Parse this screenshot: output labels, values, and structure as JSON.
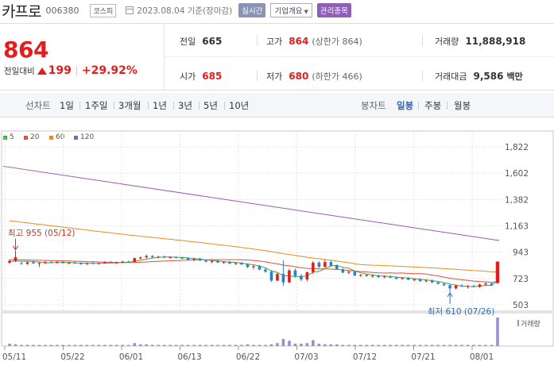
{
  "header": {
    "name": "카프로",
    "code": "006380",
    "market": "코스피",
    "date": "2023.08.04 기준(장마감)",
    "realtime": "실시간",
    "company_info": "기업개요",
    "managed": "관리종목"
  },
  "price": {
    "current": "864",
    "change_label": "전일대비",
    "change": "199",
    "change_pct": "+29.92%"
  },
  "stats": {
    "prev_label": "전일",
    "prev": "665",
    "high_label": "고가",
    "high": "864",
    "upper_limit": "(상한가 864)",
    "volume_label": "거래량",
    "volume": "11,888,918",
    "open_label": "시가",
    "open": "685",
    "low_label": "저가",
    "low": "680",
    "lower_limit": "(하한가 466)",
    "amount_label": "거래대금",
    "amount": "9,586",
    "amount_unit": "백만"
  },
  "periods": {
    "line_label": "선차트",
    "line_items": [
      "1일",
      "1주일",
      "3개월",
      "1년",
      "3년",
      "5년",
      "10년"
    ],
    "candle_label": "봉차트",
    "candle_items": [
      "일봉",
      "주봉",
      "월봉"
    ],
    "candle_selected": "일봉"
  },
  "chart_data": {
    "type": "candlestick",
    "legend": [
      {
        "name": "5",
        "color": "#3da83d"
      },
      {
        "name": "20",
        "color": "#e74c3c"
      },
      {
        "name": "60",
        "color": "#ef8a1a"
      },
      {
        "name": "120",
        "color": "#9b59b6"
      }
    ],
    "y_ticks": [
      "1,822",
      "1,602",
      "1,382",
      "1,163",
      "943",
      "723",
      "503"
    ],
    "ylim": [
      503,
      1822
    ],
    "x_ticks": [
      "05/11",
      "05/22",
      "06/01",
      "06/13",
      "06/22",
      "07/03",
      "07/12",
      "07/21",
      "08/01"
    ],
    "high_annotation": "최고 955 (05/12)",
    "low_annotation": "최저 610 (07/26)",
    "volume_label": "거래량",
    "candles": [
      {
        "o": 855,
        "h": 880,
        "l": 845,
        "c": 870
      },
      {
        "o": 870,
        "h": 955,
        "l": 860,
        "c": 900
      },
      {
        "o": 850,
        "h": 865,
        "l": 840,
        "c": 845
      },
      {
        "o": 845,
        "h": 862,
        "l": 838,
        "c": 858
      },
      {
        "o": 858,
        "h": 870,
        "l": 846,
        "c": 848
      },
      {
        "o": 848,
        "h": 858,
        "l": 818,
        "c": 852
      },
      {
        "o": 852,
        "h": 868,
        "l": 844,
        "c": 860
      },
      {
        "o": 860,
        "h": 872,
        "l": 852,
        "c": 855
      },
      {
        "o": 855,
        "h": 866,
        "l": 846,
        "c": 862
      },
      {
        "o": 862,
        "h": 870,
        "l": 850,
        "c": 850
      },
      {
        "o": 850,
        "h": 860,
        "l": 842,
        "c": 854
      },
      {
        "o": 854,
        "h": 866,
        "l": 846,
        "c": 848
      },
      {
        "o": 848,
        "h": 858,
        "l": 840,
        "c": 844
      },
      {
        "o": 844,
        "h": 856,
        "l": 836,
        "c": 852
      },
      {
        "o": 852,
        "h": 864,
        "l": 842,
        "c": 846
      },
      {
        "o": 846,
        "h": 856,
        "l": 840,
        "c": 852
      },
      {
        "o": 852,
        "h": 866,
        "l": 846,
        "c": 858
      },
      {
        "o": 858,
        "h": 868,
        "l": 848,
        "c": 852
      },
      {
        "o": 852,
        "h": 862,
        "l": 844,
        "c": 858
      },
      {
        "o": 858,
        "h": 870,
        "l": 850,
        "c": 864
      },
      {
        "o": 864,
        "h": 872,
        "l": 856,
        "c": 860
      },
      {
        "o": 862,
        "h": 898,
        "l": 858,
        "c": 892
      },
      {
        "o": 890,
        "h": 906,
        "l": 882,
        "c": 898
      },
      {
        "o": 900,
        "h": 922,
        "l": 890,
        "c": 910
      },
      {
        "o": 910,
        "h": 918,
        "l": 896,
        "c": 900
      },
      {
        "o": 898,
        "h": 912,
        "l": 890,
        "c": 905
      },
      {
        "o": 905,
        "h": 914,
        "l": 892,
        "c": 898
      },
      {
        "o": 898,
        "h": 908,
        "l": 888,
        "c": 902
      },
      {
        "o": 902,
        "h": 910,
        "l": 890,
        "c": 895
      },
      {
        "o": 895,
        "h": 904,
        "l": 884,
        "c": 892
      },
      {
        "o": 892,
        "h": 902,
        "l": 874,
        "c": 880
      },
      {
        "o": 880,
        "h": 892,
        "l": 868,
        "c": 885
      },
      {
        "o": 885,
        "h": 896,
        "l": 870,
        "c": 872
      },
      {
        "o": 872,
        "h": 880,
        "l": 858,
        "c": 862
      },
      {
        "o": 862,
        "h": 874,
        "l": 850,
        "c": 868
      },
      {
        "o": 868,
        "h": 878,
        "l": 852,
        "c": 856
      },
      {
        "o": 856,
        "h": 866,
        "l": 846,
        "c": 860
      },
      {
        "o": 860,
        "h": 870,
        "l": 842,
        "c": 848
      },
      {
        "o": 848,
        "h": 858,
        "l": 836,
        "c": 852
      },
      {
        "o": 852,
        "h": 860,
        "l": 836,
        "c": 840
      },
      {
        "o": 840,
        "h": 850,
        "l": 810,
        "c": 818
      },
      {
        "o": 818,
        "h": 832,
        "l": 800,
        "c": 826
      },
      {
        "o": 826,
        "h": 836,
        "l": 792,
        "c": 798
      },
      {
        "o": 798,
        "h": 812,
        "l": 770,
        "c": 780
      },
      {
        "o": 780,
        "h": 790,
        "l": 695,
        "c": 705
      },
      {
        "o": 705,
        "h": 770,
        "l": 700,
        "c": 760
      },
      {
        "o": 760,
        "h": 875,
        "l": 660,
        "c": 690
      },
      {
        "o": 690,
        "h": 800,
        "l": 685,
        "c": 790
      },
      {
        "o": 790,
        "h": 805,
        "l": 730,
        "c": 745
      },
      {
        "o": 745,
        "h": 760,
        "l": 700,
        "c": 715
      },
      {
        "o": 715,
        "h": 780,
        "l": 700,
        "c": 775
      },
      {
        "o": 775,
        "h": 868,
        "l": 760,
        "c": 855
      },
      {
        "o": 855,
        "h": 866,
        "l": 810,
        "c": 820
      },
      {
        "o": 820,
        "h": 880,
        "l": 812,
        "c": 860
      },
      {
        "o": 860,
        "h": 874,
        "l": 820,
        "c": 830
      },
      {
        "o": 830,
        "h": 840,
        "l": 796,
        "c": 800
      },
      {
        "o": 800,
        "h": 812,
        "l": 766,
        "c": 772
      },
      {
        "o": 772,
        "h": 786,
        "l": 760,
        "c": 780
      },
      {
        "o": 780,
        "h": 790,
        "l": 742,
        "c": 748
      },
      {
        "o": 748,
        "h": 760,
        "l": 736,
        "c": 752
      },
      {
        "o": 752,
        "h": 762,
        "l": 738,
        "c": 742
      },
      {
        "o": 742,
        "h": 752,
        "l": 730,
        "c": 746
      },
      {
        "o": 746,
        "h": 756,
        "l": 730,
        "c": 734
      },
      {
        "o": 734,
        "h": 746,
        "l": 724,
        "c": 740
      },
      {
        "o": 740,
        "h": 750,
        "l": 726,
        "c": 730
      },
      {
        "o": 730,
        "h": 740,
        "l": 714,
        "c": 720
      },
      {
        "o": 720,
        "h": 732,
        "l": 712,
        "c": 726
      },
      {
        "o": 726,
        "h": 736,
        "l": 708,
        "c": 712
      },
      {
        "o": 712,
        "h": 722,
        "l": 700,
        "c": 716
      },
      {
        "o": 716,
        "h": 726,
        "l": 696,
        "c": 700
      },
      {
        "o": 700,
        "h": 712,
        "l": 690,
        "c": 706
      },
      {
        "o": 706,
        "h": 716,
        "l": 684,
        "c": 690
      },
      {
        "o": 690,
        "h": 700,
        "l": 672,
        "c": 678
      },
      {
        "o": 678,
        "h": 688,
        "l": 660,
        "c": 666
      },
      {
        "o": 666,
        "h": 676,
        "l": 610,
        "c": 640
      },
      {
        "o": 640,
        "h": 672,
        "l": 632,
        "c": 662
      },
      {
        "o": 662,
        "h": 676,
        "l": 650,
        "c": 656
      },
      {
        "o": 656,
        "h": 668,
        "l": 640,
        "c": 660
      },
      {
        "o": 660,
        "h": 672,
        "l": 648,
        "c": 652
      },
      {
        "o": 652,
        "h": 680,
        "l": 646,
        "c": 672
      },
      {
        "o": 672,
        "h": 690,
        "l": 664,
        "c": 680
      },
      {
        "o": 680,
        "h": 692,
        "l": 660,
        "c": 665
      },
      {
        "o": 685,
        "h": 864,
        "l": 680,
        "c": 864
      }
    ],
    "ma120": [
      1660,
      1040
    ],
    "volumes": [
      4,
      3,
      2,
      2,
      2,
      2,
      2,
      2,
      2,
      2,
      2,
      2,
      2,
      2,
      2,
      2,
      2,
      2,
      2,
      2,
      2,
      5,
      3,
      3,
      2,
      2,
      2,
      2,
      2,
      2,
      2,
      2,
      2,
      2,
      2,
      2,
      2,
      2,
      2,
      2,
      3,
      2,
      2,
      2,
      3,
      5,
      12,
      9,
      4,
      4,
      5,
      10,
      4,
      3,
      3,
      3,
      2,
      2,
      2,
      2,
      2,
      2,
      2,
      2,
      2,
      2,
      2,
      2,
      2,
      2,
      2,
      2,
      2,
      2,
      2,
      2,
      2,
      2,
      2,
      2,
      2,
      2,
      48
    ]
  }
}
